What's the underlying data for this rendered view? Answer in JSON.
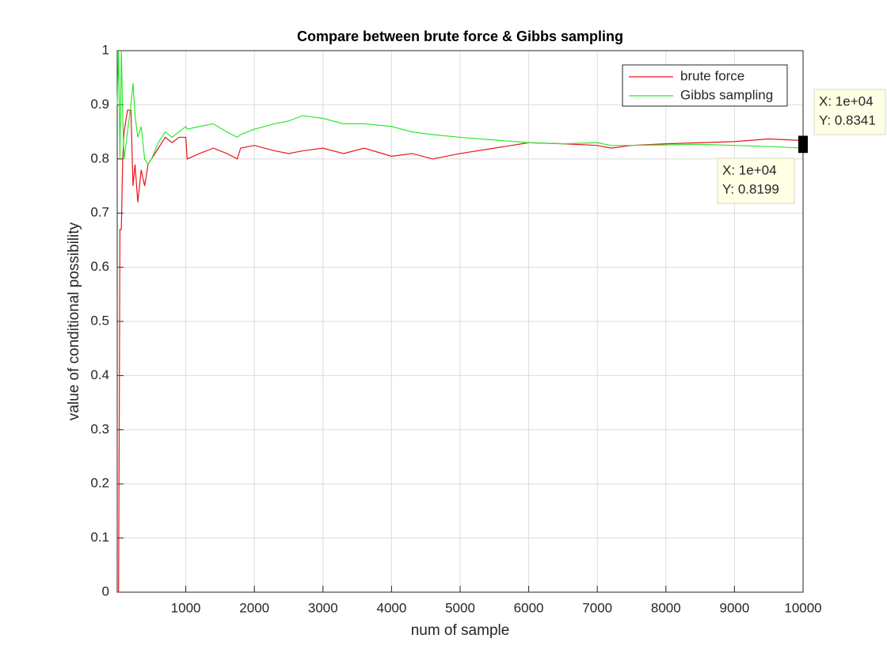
{
  "chart_data": {
    "type": "line",
    "title": "Compare between brute force & Gibbs sampling",
    "x_label": "num of sample",
    "y_label": "value of conditional possibility",
    "x": [
      0,
      20,
      40,
      60,
      80,
      100,
      150,
      200,
      230,
      260,
      300,
      350,
      400,
      450,
      500,
      600,
      700,
      800,
      900,
      1000,
      1020,
      1200,
      1400,
      1600,
      1750,
      1800,
      2000,
      2300,
      2500,
      2700,
      3000,
      3300,
      3600,
      4000,
      4300,
      4600,
      5000,
      5500,
      6000,
      6500,
      7000,
      7200,
      7500,
      8000,
      8500,
      9000,
      9500,
      10000
    ],
    "series": [
      {
        "name": "brute force",
        "color": "#e8161b",
        "values": [
          0,
          0,
          0.67,
          0.67,
          0.8,
          0.85,
          0.89,
          0.89,
          0.75,
          0.79,
          0.72,
          0.78,
          0.75,
          0.79,
          0.8,
          0.82,
          0.84,
          0.83,
          0.84,
          0.84,
          0.8,
          0.81,
          0.82,
          0.81,
          0.8,
          0.82,
          0.825,
          0.815,
          0.81,
          0.815,
          0.82,
          0.81,
          0.82,
          0.805,
          0.81,
          0.8,
          0.81,
          0.82,
          0.83,
          0.828,
          0.825,
          0.82,
          0.825,
          0.828,
          0.83,
          0.832,
          0.837,
          0.8341
        ]
      },
      {
        "name": "Gibbs sampling",
        "color": "#2ee82e",
        "values": [
          0.9,
          1,
          0.8,
          1,
          0.88,
          0.8,
          0.85,
          0.9,
          0.94,
          0.88,
          0.84,
          0.86,
          0.8,
          0.79,
          0.8,
          0.83,
          0.85,
          0.84,
          0.85,
          0.86,
          0.855,
          0.86,
          0.865,
          0.85,
          0.84,
          0.845,
          0.855,
          0.865,
          0.87,
          0.88,
          0.875,
          0.865,
          0.865,
          0.86,
          0.85,
          0.845,
          0.84,
          0.835,
          0.83,
          0.828,
          0.83,
          0.825,
          0.825,
          0.826,
          0.827,
          0.825,
          0.823,
          0.8199
        ]
      }
    ],
    "xlim": [
      0,
      10000
    ],
    "xticks": [
      1000,
      2000,
      3000,
      4000,
      5000,
      6000,
      7000,
      8000,
      9000,
      10000
    ],
    "ylim": [
      0,
      1
    ],
    "yticks": [
      0,
      0.1,
      0.2,
      0.3,
      0.4,
      0.5,
      0.6,
      0.7,
      0.8,
      0.9,
      1
    ],
    "grid": true,
    "legend": "northeast",
    "datatips": [
      {
        "x_label": "X: 1e+04",
        "y_label": "Y: 0.8341"
      },
      {
        "x_label": "X: 1e+04",
        "y_label": "Y: 0.8199"
      }
    ]
  }
}
